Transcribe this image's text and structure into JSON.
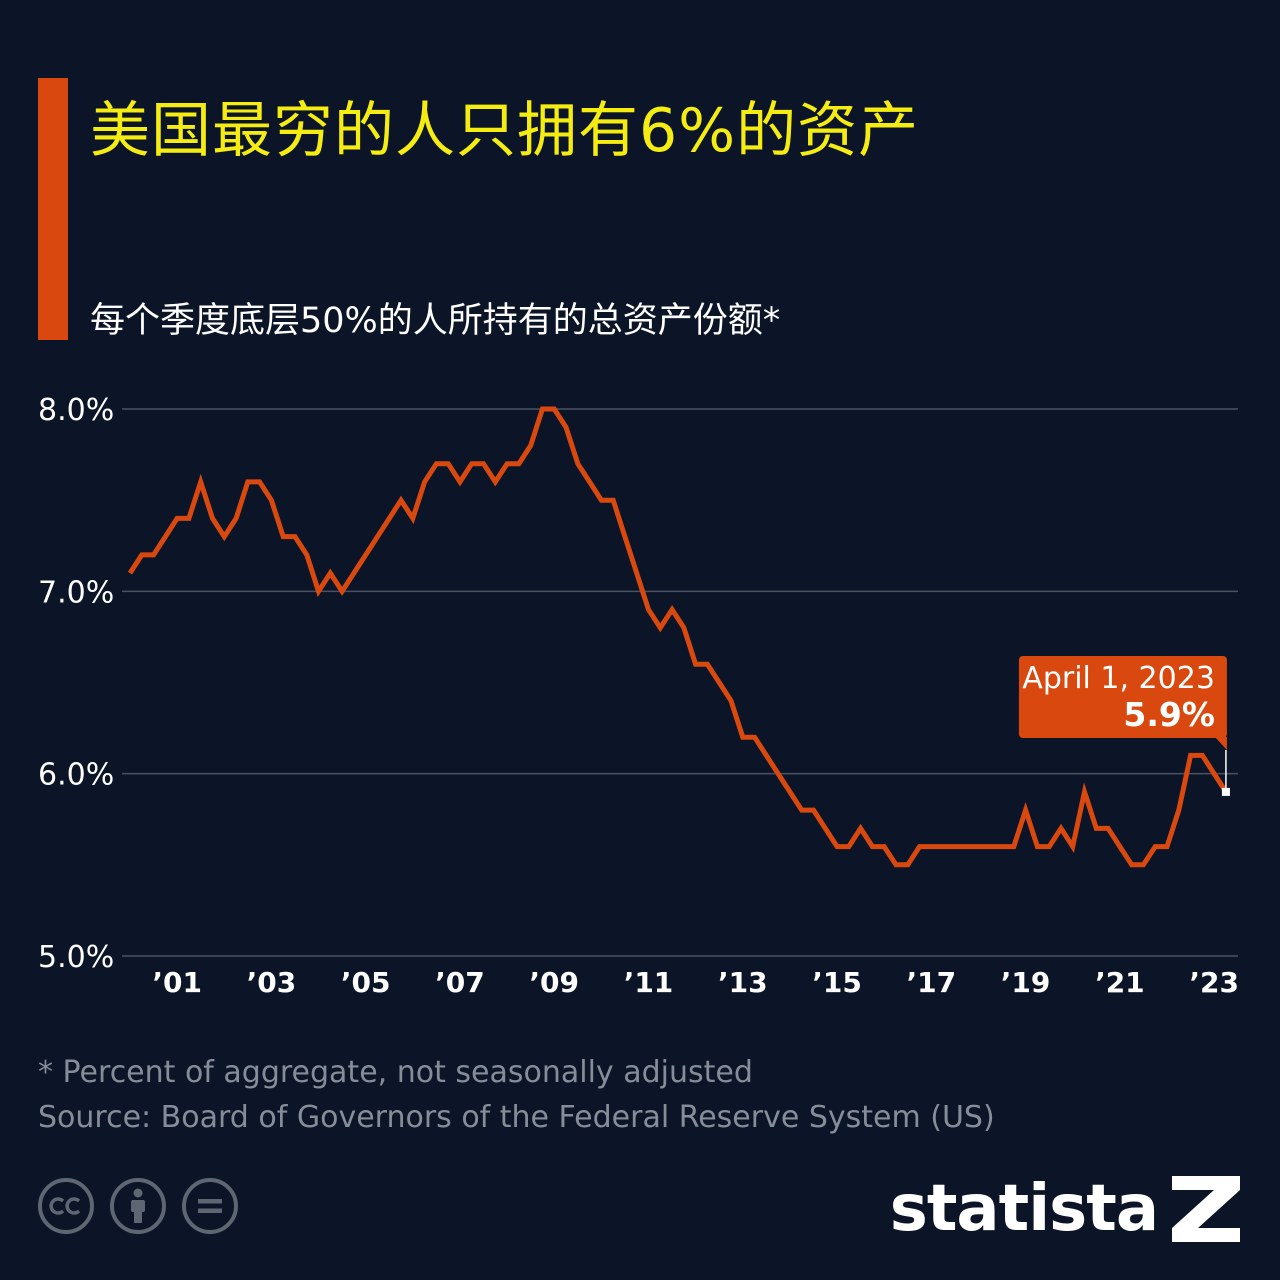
{
  "title": "美国最穷的人只拥有6%的资产",
  "subtitle": "每个季度底层50%的人所持有的总资产份额*",
  "footnote": "* Percent of aggregate, not seasonally adjusted",
  "source": "Source: Board of Governors of the Federal Reserve System (US)",
  "logo": {
    "text": "statista",
    "icon": "statista-logo-icon"
  },
  "license_icons": [
    "cc-icon",
    "attribution-icon",
    "no-derivatives-icon"
  ],
  "colors": {
    "background": "#0b1527",
    "accent": "#d9490f",
    "title": "#f5ec12",
    "line": "#d9490f",
    "grid": "#4a5262"
  },
  "chart_data": {
    "type": "line",
    "ylim": [
      5.0,
      8.0
    ],
    "y_ticks": [
      "8.0%",
      "7.0%",
      "6.0%",
      "5.0%"
    ],
    "y_tick_values": [
      8.0,
      7.0,
      6.0,
      5.0
    ],
    "x_ticks": [
      "’01",
      "’03",
      "’05",
      "’07",
      "’09",
      "’11",
      "’13",
      "’15",
      "’17",
      "’19",
      "’21",
      "’23"
    ],
    "x_tick_values": [
      2001,
      2003,
      2005,
      2007,
      2009,
      2011,
      2013,
      2015,
      2017,
      2019,
      2021,
      2023
    ],
    "xlim": [
      2000,
      2023.4
    ],
    "grid": true,
    "series": [
      {
        "values": [
          [
            2000.0,
            7.1
          ],
          [
            2000.25,
            7.2
          ],
          [
            2000.5,
            7.2
          ],
          [
            2000.75,
            7.3
          ],
          [
            2001.0,
            7.4
          ],
          [
            2001.25,
            7.4
          ],
          [
            2001.5,
            7.6
          ],
          [
            2001.75,
            7.4
          ],
          [
            2002.0,
            7.3
          ],
          [
            2002.25,
            7.4
          ],
          [
            2002.5,
            7.6
          ],
          [
            2002.75,
            7.6
          ],
          [
            2003.0,
            7.5
          ],
          [
            2003.25,
            7.3
          ],
          [
            2003.5,
            7.3
          ],
          [
            2003.75,
            7.2
          ],
          [
            2004.0,
            7.0
          ],
          [
            2004.25,
            7.1
          ],
          [
            2004.5,
            7.0
          ],
          [
            2004.75,
            7.1
          ],
          [
            2005.0,
            7.2
          ],
          [
            2005.25,
            7.3
          ],
          [
            2005.5,
            7.4
          ],
          [
            2005.75,
            7.5
          ],
          [
            2006.0,
            7.4
          ],
          [
            2006.25,
            7.6
          ],
          [
            2006.5,
            7.7
          ],
          [
            2006.75,
            7.7
          ],
          [
            2007.0,
            7.6
          ],
          [
            2007.25,
            7.7
          ],
          [
            2007.5,
            7.7
          ],
          [
            2007.75,
            7.6
          ],
          [
            2008.0,
            7.7
          ],
          [
            2008.25,
            7.7
          ],
          [
            2008.5,
            7.8
          ],
          [
            2008.75,
            8.0
          ],
          [
            2009.0,
            8.0
          ],
          [
            2009.25,
            7.9
          ],
          [
            2009.5,
            7.7
          ],
          [
            2009.75,
            7.6
          ],
          [
            2010.0,
            7.5
          ],
          [
            2010.25,
            7.5
          ],
          [
            2010.5,
            7.3
          ],
          [
            2010.75,
            7.1
          ],
          [
            2011.0,
            6.9
          ],
          [
            2011.25,
            6.8
          ],
          [
            2011.5,
            6.9
          ],
          [
            2011.75,
            6.8
          ],
          [
            2012.0,
            6.6
          ],
          [
            2012.25,
            6.6
          ],
          [
            2012.5,
            6.5
          ],
          [
            2012.75,
            6.4
          ],
          [
            2013.0,
            6.2
          ],
          [
            2013.25,
            6.2
          ],
          [
            2013.5,
            6.1
          ],
          [
            2013.75,
            6.0
          ],
          [
            2014.0,
            5.9
          ],
          [
            2014.25,
            5.8
          ],
          [
            2014.5,
            5.8
          ],
          [
            2014.75,
            5.7
          ],
          [
            2015.0,
            5.6
          ],
          [
            2015.25,
            5.6
          ],
          [
            2015.5,
            5.7
          ],
          [
            2015.75,
            5.6
          ],
          [
            2016.0,
            5.6
          ],
          [
            2016.25,
            5.5
          ],
          [
            2016.5,
            5.5
          ],
          [
            2016.75,
            5.6
          ],
          [
            2017.0,
            5.6
          ],
          [
            2017.25,
            5.6
          ],
          [
            2017.5,
            5.6
          ],
          [
            2017.75,
            5.6
          ],
          [
            2018.0,
            5.6
          ],
          [
            2018.25,
            5.6
          ],
          [
            2018.5,
            5.6
          ],
          [
            2018.75,
            5.6
          ],
          [
            2019.0,
            5.8
          ],
          [
            2019.25,
            5.6
          ],
          [
            2019.5,
            5.6
          ],
          [
            2019.75,
            5.7
          ],
          [
            2020.0,
            5.6
          ],
          [
            2020.25,
            5.9
          ],
          [
            2020.5,
            5.7
          ],
          [
            2020.75,
            5.7
          ],
          [
            2021.0,
            5.6
          ],
          [
            2021.25,
            5.5
          ],
          [
            2021.5,
            5.5
          ],
          [
            2021.75,
            5.6
          ],
          [
            2022.0,
            5.6
          ],
          [
            2022.25,
            5.8
          ],
          [
            2022.5,
            6.1
          ],
          [
            2022.75,
            6.1
          ],
          [
            2023.0,
            6.0
          ],
          [
            2023.25,
            5.9
          ]
        ]
      }
    ],
    "annotation": {
      "date": "April 1, 2023",
      "value": "5.9%"
    }
  }
}
